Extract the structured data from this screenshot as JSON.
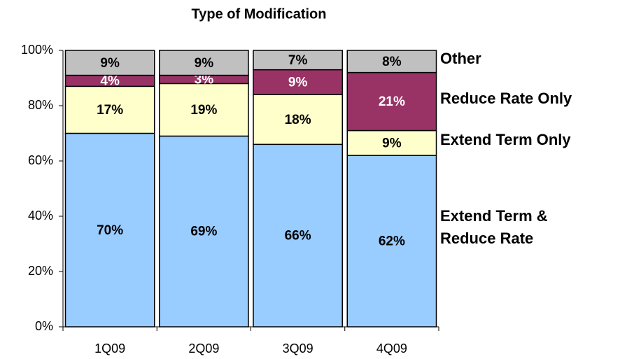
{
  "chart_data": {
    "type": "stacked_bar",
    "title": "Type of Modification",
    "categories": [
      "1Q09",
      "2Q09",
      "3Q09",
      "4Q09"
    ],
    "series": [
      {
        "name": "Extend Term & Reduce Rate",
        "color": "#99ccff",
        "values": [
          70,
          69,
          66,
          62
        ],
        "value_labels": [
          "70%",
          "69%",
          "66%",
          "62%"
        ]
      },
      {
        "name": "Extend Term Only",
        "color": "#ffffcc",
        "values": [
          17,
          19,
          18,
          9
        ],
        "value_labels": [
          "17%",
          "19%",
          "18%",
          "9%"
        ]
      },
      {
        "name": "Reduce Rate Only",
        "color": "#993366",
        "values": [
          4,
          3,
          9,
          21
        ],
        "value_labels": [
          "4%",
          "3%",
          "9%",
          "21%"
        ]
      },
      {
        "name": "Other",
        "color": "#c0c0c0",
        "values": [
          9,
          9,
          7,
          8
        ],
        "value_labels": [
          "9%",
          "9%",
          "7%",
          "8%"
        ]
      }
    ],
    "ylim": [
      0,
      100
    ],
    "yticks": [
      {
        "value": 0,
        "label": "0%"
      },
      {
        "value": 20,
        "label": "20%"
      },
      {
        "value": 40,
        "label": "40%"
      },
      {
        "value": 60,
        "label": "60%"
      },
      {
        "value": 80,
        "label": "80%"
      },
      {
        "value": 100,
        "label": "100%"
      }
    ],
    "legend": "right"
  }
}
